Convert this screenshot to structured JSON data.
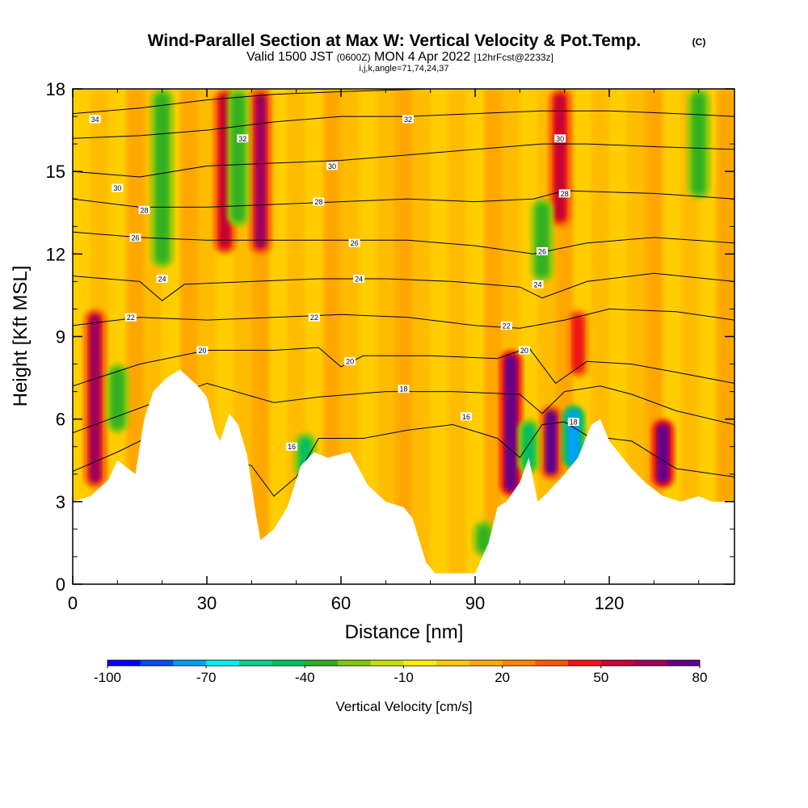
{
  "title": {
    "main": "Wind-Parallel Section at Max W: Vertical Velocity & Pot.Temp.",
    "copyright": "(C)",
    "valid_prefix": "Valid 1500 JST",
    "valid_zulu": "(0600Z)",
    "valid_day": "MON 4 Apr 2022",
    "forecast": "[12hrFcst@2233z]",
    "indices": "i,j,k,angle=71,74,24,37"
  },
  "chart_data": {
    "type": "heatmap",
    "xlabel": "Distance [nm]",
    "ylabel": "Height [Kft MSL]",
    "xlim": [
      0,
      148
    ],
    "ylim": [
      0,
      18
    ],
    "x_ticks": [
      0,
      30,
      60,
      90,
      120
    ],
    "y_ticks": [
      0,
      3,
      6,
      9,
      12,
      15,
      18
    ],
    "x_tick_labels": [
      "0",
      "30",
      "60",
      "90",
      "120"
    ],
    "y_tick_labels": [
      "0",
      "3",
      "6",
      "9",
      "12",
      "15",
      "18"
    ],
    "colorbar": {
      "label": "Vertical Velocity [cm/s]",
      "min": -100,
      "max": 80,
      "step": 10,
      "tick_values": [
        -100,
        -70,
        -40,
        -10,
        20,
        50,
        80
      ],
      "tick_labels": [
        "-100",
        "-70",
        "-40",
        "-10",
        "20",
        "50",
        "80"
      ],
      "colors": [
        "#0000ff",
        "#0050f0",
        "#00a0f5",
        "#00f0f0",
        "#00d08a",
        "#00c060",
        "#30b020",
        "#80c810",
        "#c8e000",
        "#ffee00",
        "#ffc800",
        "#ffa800",
        "#ff8400",
        "#ff5a00",
        "#f01414",
        "#c80032",
        "#a0005a",
        "#64008c"
      ]
    },
    "terrain_kft": [
      [
        0,
        3.0
      ],
      [
        4,
        3.2
      ],
      [
        8,
        3.8
      ],
      [
        10,
        4.5
      ],
      [
        14,
        4.0
      ],
      [
        16,
        6.0
      ],
      [
        18,
        7.0
      ],
      [
        21,
        7.5
      ],
      [
        24,
        7.8
      ],
      [
        28,
        7.2
      ],
      [
        30,
        6.8
      ],
      [
        32,
        5.5
      ],
      [
        33,
        5.2
      ],
      [
        35,
        6.2
      ],
      [
        37,
        5.8
      ],
      [
        39,
        4.7
      ],
      [
        41,
        2.5
      ],
      [
        42,
        1.6
      ],
      [
        45,
        2.0
      ],
      [
        48,
        2.8
      ],
      [
        51,
        4.3
      ],
      [
        54,
        4.8
      ],
      [
        57,
        4.6
      ],
      [
        62,
        4.8
      ],
      [
        66,
        3.6
      ],
      [
        70,
        3.0
      ],
      [
        74,
        2.8
      ],
      [
        76,
        2.4
      ],
      [
        79,
        0.8
      ],
      [
        81,
        0.4
      ],
      [
        90,
        0.4
      ],
      [
        93,
        1.5
      ],
      [
        95,
        2.8
      ],
      [
        97,
        3.0
      ],
      [
        100,
        3.7
      ],
      [
        102,
        4.6
      ],
      [
        104,
        3.0
      ],
      [
        106,
        3.3
      ],
      [
        110,
        4.0
      ],
      [
        113,
        4.6
      ],
      [
        116,
        5.8
      ],
      [
        118,
        6.0
      ],
      [
        120,
        5.2
      ],
      [
        125,
        4.2
      ],
      [
        128,
        3.7
      ],
      [
        132,
        3.2
      ],
      [
        136,
        3.0
      ],
      [
        140,
        3.2
      ],
      [
        143,
        3.0
      ],
      [
        148,
        3.0
      ]
    ],
    "series": [
      {
        "value": 16,
        "points": [
          [
            0,
            4.1
          ],
          [
            10,
            4.8
          ],
          [
            20,
            5.6
          ],
          [
            30,
            5.0
          ],
          [
            40,
            4.3
          ],
          [
            45,
            3.2
          ],
          [
            50,
            3.9
          ],
          [
            55,
            5.3
          ],
          [
            65,
            5.3
          ],
          [
            75,
            5.6
          ],
          [
            85,
            5.8
          ],
          [
            95,
            5.3
          ],
          [
            100,
            4.6
          ],
          [
            105,
            5.8
          ],
          [
            110,
            5.9
          ],
          [
            115,
            5.4
          ],
          [
            125,
            5.2
          ],
          [
            135,
            4.2
          ],
          [
            148,
            3.9
          ]
        ]
      },
      {
        "value": 18,
        "points": [
          [
            0,
            5.5
          ],
          [
            15,
            6.4
          ],
          [
            30,
            7.3
          ],
          [
            45,
            6.6
          ],
          [
            55,
            6.8
          ],
          [
            70,
            7.0
          ],
          [
            85,
            7.0
          ],
          [
            100,
            6.9
          ],
          [
            105,
            6.2
          ],
          [
            110,
            7.0
          ],
          [
            118,
            7.2
          ],
          [
            125,
            6.9
          ],
          [
            135,
            6.3
          ],
          [
            148,
            5.8
          ]
        ]
      },
      {
        "value": 20,
        "points": [
          [
            0,
            7.2
          ],
          [
            15,
            8.0
          ],
          [
            30,
            8.5
          ],
          [
            45,
            8.5
          ],
          [
            55,
            8.6
          ],
          [
            60,
            7.9
          ],
          [
            65,
            8.3
          ],
          [
            80,
            8.3
          ],
          [
            95,
            8.2
          ],
          [
            102,
            8.6
          ],
          [
            108,
            7.3
          ],
          [
            115,
            8.1
          ],
          [
            125,
            8.0
          ],
          [
            135,
            7.7
          ],
          [
            148,
            7.3
          ]
        ]
      },
      {
        "value": 22,
        "points": [
          [
            0,
            9.4
          ],
          [
            15,
            9.7
          ],
          [
            30,
            9.6
          ],
          [
            45,
            9.7
          ],
          [
            60,
            9.8
          ],
          [
            75,
            9.7
          ],
          [
            90,
            9.4
          ],
          [
            100,
            9.3
          ],
          [
            110,
            9.6
          ],
          [
            120,
            10.0
          ],
          [
            135,
            9.9
          ],
          [
            148,
            9.6
          ]
        ]
      },
      {
        "value": 24,
        "points": [
          [
            0,
            11.2
          ],
          [
            15,
            11.0
          ],
          [
            20,
            10.3
          ],
          [
            25,
            10.9
          ],
          [
            40,
            11.0
          ],
          [
            55,
            11.1
          ],
          [
            70,
            11.1
          ],
          [
            85,
            11.0
          ],
          [
            100,
            10.8
          ],
          [
            105,
            10.4
          ],
          [
            115,
            11.0
          ],
          [
            130,
            11.3
          ],
          [
            148,
            11.0
          ]
        ]
      },
      {
        "value": 26,
        "points": [
          [
            0,
            12.8
          ],
          [
            15,
            12.6
          ],
          [
            30,
            12.5
          ],
          [
            45,
            12.5
          ],
          [
            60,
            12.5
          ],
          [
            75,
            12.5
          ],
          [
            90,
            12.3
          ],
          [
            103,
            12.0
          ],
          [
            115,
            12.4
          ],
          [
            130,
            12.6
          ],
          [
            148,
            12.4
          ]
        ]
      },
      {
        "value": 28,
        "points": [
          [
            0,
            14.0
          ],
          [
            15,
            13.7
          ],
          [
            30,
            13.7
          ],
          [
            45,
            13.8
          ],
          [
            60,
            13.9
          ],
          [
            75,
            14.0
          ],
          [
            90,
            13.9
          ],
          [
            103,
            14.0
          ],
          [
            110,
            14.3
          ],
          [
            130,
            14.2
          ],
          [
            148,
            14.0
          ]
        ]
      },
      {
        "value": 30,
        "points": [
          [
            0,
            15.0
          ],
          [
            15,
            14.8
          ],
          [
            30,
            15.2
          ],
          [
            45,
            15.3
          ],
          [
            60,
            15.4
          ],
          [
            75,
            15.6
          ],
          [
            90,
            15.8
          ],
          [
            105,
            16.0
          ],
          [
            115,
            16.0
          ],
          [
            130,
            15.9
          ],
          [
            148,
            15.8
          ]
        ]
      },
      {
        "value": 32,
        "points": [
          [
            0,
            16.2
          ],
          [
            15,
            16.3
          ],
          [
            30,
            16.5
          ],
          [
            45,
            16.8
          ],
          [
            60,
            17.0
          ],
          [
            75,
            17.0
          ],
          [
            90,
            17.1
          ],
          [
            105,
            17.2
          ],
          [
            120,
            17.2
          ],
          [
            135,
            17.1
          ],
          [
            148,
            17.0
          ]
        ]
      },
      {
        "value": 34,
        "points": [
          [
            0,
            17.1
          ],
          [
            15,
            17.3
          ],
          [
            30,
            17.6
          ],
          [
            45,
            17.8
          ],
          [
            60,
            17.9
          ],
          [
            80,
            18.0
          ],
          [
            100,
            18.0
          ],
          [
            130,
            18.0
          ],
          [
            148,
            18.0
          ]
        ]
      }
    ],
    "labels": [
      {
        "text": "34",
        "x": 5,
        "y": 16.9
      },
      {
        "text": "32",
        "x": 38,
        "y": 16.2
      },
      {
        "text": "32",
        "x": 75,
        "y": 16.9
      },
      {
        "text": "30",
        "x": 109,
        "y": 16.2
      },
      {
        "text": "30",
        "x": 10,
        "y": 14.4
      },
      {
        "text": "30",
        "x": 58,
        "y": 15.2
      },
      {
        "text": "28",
        "x": 16,
        "y": 13.6
      },
      {
        "text": "28",
        "x": 55,
        "y": 13.9
      },
      {
        "text": "28",
        "x": 110,
        "y": 14.2
      },
      {
        "text": "26",
        "x": 14,
        "y": 12.6
      },
      {
        "text": "26",
        "x": 63,
        "y": 12.4
      },
      {
        "text": "26",
        "x": 105,
        "y": 12.1
      },
      {
        "text": "24",
        "x": 20,
        "y": 11.1
      },
      {
        "text": "24",
        "x": 64,
        "y": 11.1
      },
      {
        "text": "24",
        "x": 104,
        "y": 10.9
      },
      {
        "text": "22",
        "x": 13,
        "y": 9.7
      },
      {
        "text": "22",
        "x": 54,
        "y": 9.7
      },
      {
        "text": "22",
        "x": 97,
        "y": 9.4
      },
      {
        "text": "20",
        "x": 29,
        "y": 8.5
      },
      {
        "text": "20",
        "x": 62,
        "y": 8.1
      },
      {
        "text": "20",
        "x": 101,
        "y": 8.5
      },
      {
        "text": "18",
        "x": 74,
        "y": 7.1
      },
      {
        "text": "18",
        "x": 112,
        "y": 5.9
      },
      {
        "text": "16",
        "x": 49,
        "y": 5.0
      },
      {
        "text": "16",
        "x": 88,
        "y": 6.1
      }
    ],
    "updraft_columns": [
      {
        "x": 5,
        "bottom": 3.5,
        "top": 10.0,
        "value": 60
      },
      {
        "x": 34,
        "bottom": 12.0,
        "top": 18.0,
        "value": 55
      },
      {
        "x": 42,
        "bottom": 12.0,
        "top": 18.0,
        "value": 60
      },
      {
        "x": 98,
        "bottom": 3.2,
        "top": 8.5,
        "value": 75
      },
      {
        "x": 107,
        "bottom": 3.8,
        "top": 6.5,
        "value": 70
      },
      {
        "x": 109,
        "bottom": 13.0,
        "top": 18.0,
        "value": 55
      },
      {
        "x": 113,
        "bottom": 7.5,
        "top": 10.0,
        "value": 45
      },
      {
        "x": 132,
        "bottom": 3.5,
        "top": 6.0,
        "value": 75
      }
    ],
    "downdraft_columns": [
      {
        "x": 10,
        "bottom": 5.5,
        "top": 8.0,
        "value": -35
      },
      {
        "x": 20,
        "bottom": 11.5,
        "top": 18.0,
        "value": -35
      },
      {
        "x": 37,
        "bottom": 13.0,
        "top": 18.0,
        "value": -40
      },
      {
        "x": 52,
        "bottom": 3.8,
        "top": 5.5,
        "value": -45
      },
      {
        "x": 92,
        "bottom": 1.0,
        "top": 2.3,
        "value": -35
      },
      {
        "x": 102,
        "bottom": 4.0,
        "top": 6.0,
        "value": -50
      },
      {
        "x": 105,
        "bottom": 11.0,
        "top": 14.0,
        "value": -40
      },
      {
        "x": 112,
        "bottom": 4.2,
        "top": 6.5,
        "value": -75
      },
      {
        "x": 140,
        "bottom": 14.0,
        "top": 18.0,
        "value": -40
      }
    ]
  }
}
